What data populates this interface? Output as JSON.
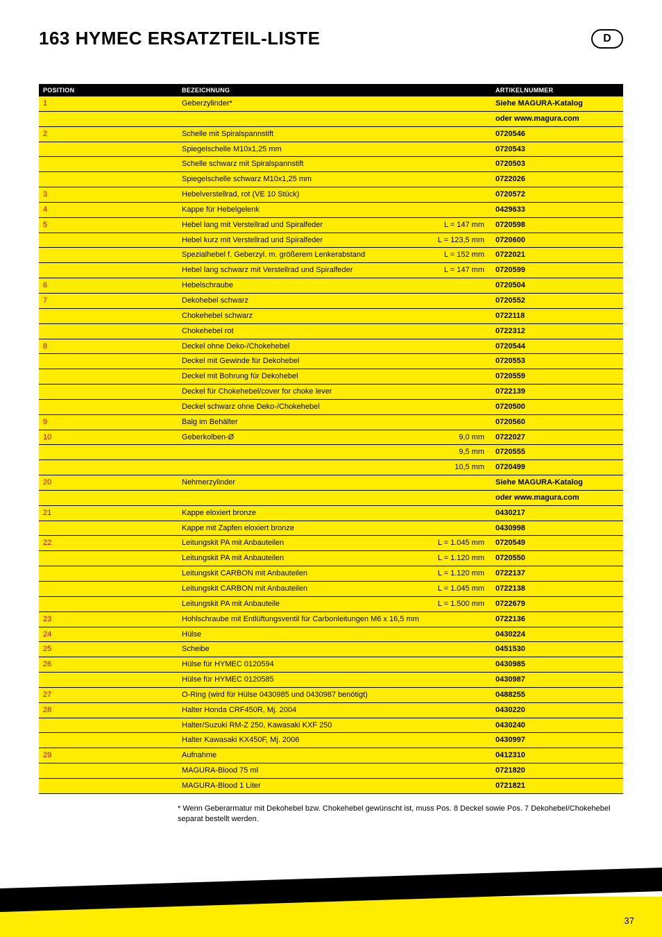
{
  "title": "163 HYMEC ERSATZTEIL-LISTE",
  "lang_badge": "D",
  "page_number": "37",
  "columns": {
    "pos": "POSITION",
    "bez": "BEZEICHNUNG",
    "art": "ARTIKELNUMMER"
  },
  "footnote_prefix": "*",
  "footnote": "Wenn Geberarmatur mit Dekohebel bzw. Chokehebel gewünscht ist, muss Pos. 8 Deckel sowie Pos. 7 Dekohebel/Chokehebel separat bestellt werden.",
  "rows": [
    {
      "pos": "1",
      "bez": "Geberzylinder*",
      "dim": "",
      "art": "Siehe MAGURA-Katalog"
    },
    {
      "pos": "",
      "bez": "",
      "dim": "",
      "art": "oder www.magura.com"
    },
    {
      "pos": "2",
      "bez": "Schelle mit Spiralspannstift",
      "dim": "",
      "art": "0720546"
    },
    {
      "pos": "",
      "bez": "Spiegelschelle M10x1,25 mm",
      "dim": "",
      "art": "0720543"
    },
    {
      "pos": "",
      "bez": "Schelle schwarz mit Spiralspannstift",
      "dim": "",
      "art": "0720503"
    },
    {
      "pos": "",
      "bez": "Spiegelschelle schwarz M10x1,25 mm",
      "dim": "",
      "art": "0722026"
    },
    {
      "pos": "3",
      "bez": "Hebelverstellrad, rot (VE 10 Stück)",
      "dim": "",
      "art": "0720572"
    },
    {
      "pos": "4",
      "bez": "Kappe für Hebelgelenk",
      "dim": "",
      "art": "0429633"
    },
    {
      "pos": "5",
      "bez": "Hebel lang mit Verstellrad und Spiralfeder",
      "dim": "L = 147 mm",
      "art": "0720598"
    },
    {
      "pos": "",
      "bez": "Hebel kurz mit Verstellrad und Spiralfeder",
      "dim": "L = 123,5 mm",
      "art": "0720600"
    },
    {
      "pos": "",
      "bez": "Spezialhebel f. Geberzyl. m. größerem Lenkerabstand",
      "dim": "L = 152 mm",
      "art": "0722021"
    },
    {
      "pos": "",
      "bez": "Hebel lang schwarz mit Verstellrad und Spiralfeder",
      "dim": "L = 147 mm",
      "art": "0720599"
    },
    {
      "pos": "6",
      "bez": "Hebelschraube",
      "dim": "",
      "art": "0720504"
    },
    {
      "pos": "7",
      "bez": "Dekohebel schwarz",
      "dim": "",
      "art": "0720552"
    },
    {
      "pos": "",
      "bez": "Chokehebel schwarz",
      "dim": "",
      "art": "0722118"
    },
    {
      "pos": "",
      "bez": "Chokehebel rot",
      "dim": "",
      "art": "0722312"
    },
    {
      "pos": "8",
      "bez": "Deckel ohne Deko-/Chokehebel",
      "dim": "",
      "art": "0720544"
    },
    {
      "pos": "",
      "bez": "Deckel mit Gewinde für Dekohebel",
      "dim": "",
      "art": "0720553"
    },
    {
      "pos": "",
      "bez": "Deckel mit Bohrung für Dekohebel",
      "dim": "",
      "art": "0720559"
    },
    {
      "pos": "",
      "bez": "Deckel für Chokehebel/cover for choke lever",
      "dim": "",
      "art": "0722139"
    },
    {
      "pos": "",
      "bez": "Deckel schwarz ohne Deko-/Chokehebel",
      "dim": "",
      "art": "0720500"
    },
    {
      "pos": "9",
      "bez": "Balg im Behälter",
      "dim": "",
      "art": "0720560"
    },
    {
      "pos": "10",
      "bez": "Geberkolben-Ø",
      "dim": "9,0 mm",
      "art": "0722027"
    },
    {
      "pos": "",
      "bez": "",
      "dim": "9,5 mm",
      "art": "0720555"
    },
    {
      "pos": "",
      "bez": "",
      "dim": "10,5 mm",
      "art": "0720499"
    },
    {
      "pos": "20",
      "bez": "Nehmerzylinder",
      "dim": "",
      "art": "Siehe MAGURA-Katalog"
    },
    {
      "pos": "",
      "bez": "",
      "dim": "",
      "art": "oder www.magura.com"
    },
    {
      "pos": "21",
      "bez": "Kappe eloxiert bronze",
      "dim": "",
      "art": "0430217"
    },
    {
      "pos": "",
      "bez": "Kappe mit Zapfen eloxiert bronze",
      "dim": "",
      "art": "0430998"
    },
    {
      "pos": "22",
      "bez": "Leitungskit PA mit Anbauteilen",
      "dim": "L = 1.045 mm",
      "art": "0720549"
    },
    {
      "pos": "",
      "bez": "Leitungskit PA mit Anbauteilen",
      "dim": "L = 1.120 mm",
      "art": "0720550"
    },
    {
      "pos": "",
      "bez": "Leitungskit CARBON mit Anbauteilen",
      "dim": "L = 1.120 mm",
      "art": "0722137"
    },
    {
      "pos": "",
      "bez": "Leitungskit CARBON mit Anbauteilen",
      "dim": "L = 1.045 mm",
      "art": "0722138"
    },
    {
      "pos": "",
      "bez": "Leitungskit PA mit Anbauteile",
      "dim": "L = 1.500 mm",
      "art": "0722679"
    },
    {
      "pos": "23",
      "bez": "Hohlschraube mit Entlüftungsventil für Carbonleitungen M6 x 16,5 mm",
      "dim": "",
      "art": "0722136"
    },
    {
      "pos": "24",
      "bez": "Hülse",
      "dim": "",
      "art": "0430224"
    },
    {
      "pos": "25",
      "bez": "Scheibe",
      "dim": "",
      "art": "0451530"
    },
    {
      "pos": "26",
      "bez": "Hülse für HYMEC 0120594",
      "dim": "",
      "art": "0430985"
    },
    {
      "pos": "",
      "bez": "Hülse für HYMEC 0120585",
      "dim": "",
      "art": "0430987"
    },
    {
      "pos": "27",
      "bez": "O-Ring (wird für Hülse 0430985 und 0430987 benötigt)",
      "dim": "",
      "art": "0488255"
    },
    {
      "pos": "28",
      "bez": "Halter Honda CRF450R, Mj. 2004",
      "dim": "",
      "art": "0430220"
    },
    {
      "pos": "",
      "bez": "Halter/Suzuki RM-Z 250, Kawasaki KXF 250",
      "dim": "",
      "art": "0430240"
    },
    {
      "pos": "",
      "bez": "Halter Kawasaki KX450F, Mj. 2006",
      "dim": "",
      "art": "0430997"
    },
    {
      "pos": "29",
      "bez": "Aufnahme",
      "dim": "",
      "art": "0412310"
    },
    {
      "pos": "",
      "bez": "MAGURA-Blood 75 ml",
      "dim": "",
      "art": "0721820"
    },
    {
      "pos": "",
      "bez": "MAGURA-Blood 1 Liter",
      "dim": "",
      "art": "0721821"
    }
  ]
}
